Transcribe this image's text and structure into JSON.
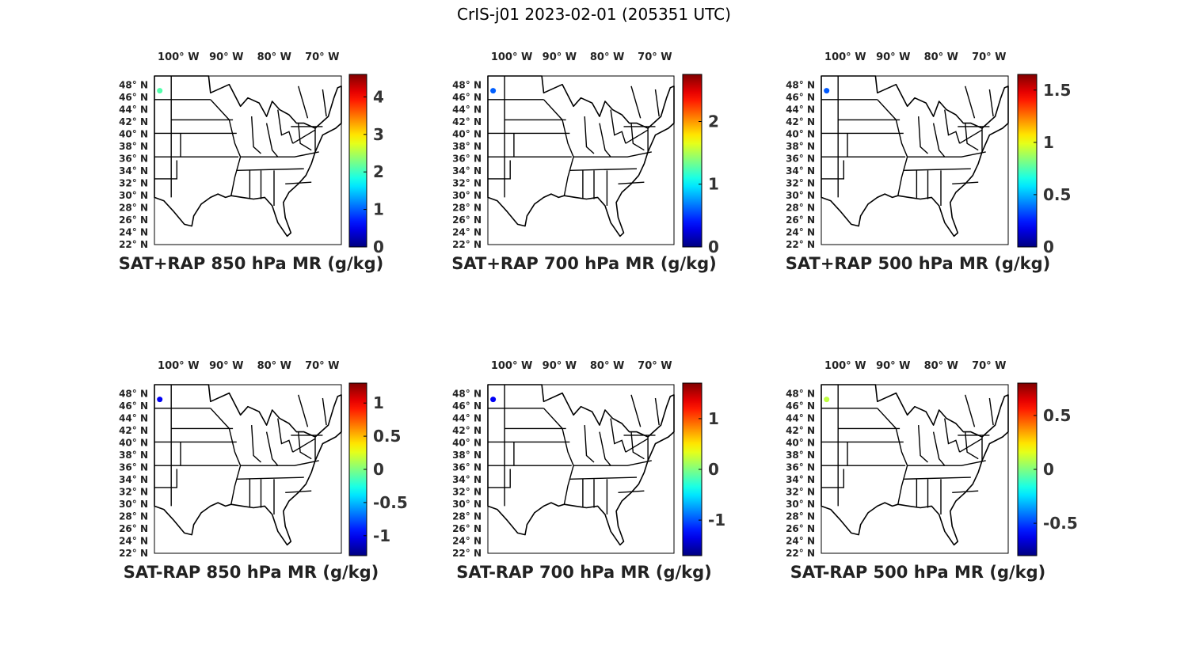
{
  "figure": {
    "title": "CrIS-j01 2023-02-01 (205351 UTC)"
  },
  "map_axes": {
    "lon_ticks": [
      "100° W",
      "90° W",
      "80° W",
      "70° W"
    ],
    "lat_ticks": [
      "48° N",
      "46° N",
      "44° N",
      "42° N",
      "40° N",
      "38° N",
      "36° N",
      "34° N",
      "32° N",
      "30° N",
      "28° N",
      "26° N",
      "24° N",
      "22° N"
    ],
    "lon_values": [
      -100,
      -90,
      -80,
      -70
    ],
    "lat_values": [
      48,
      46,
      44,
      42,
      40,
      38,
      36,
      34,
      32,
      30,
      28,
      26,
      24,
      22
    ],
    "colormap": "jet"
  },
  "chart_data": [
    {
      "type": "heatmap",
      "title": "SAT+RAP 850 hPa MR (g/kg)",
      "clim": [
        0,
        4.6
      ],
      "colorbar_ticks": [
        "0",
        "1",
        "2",
        "3",
        "4"
      ],
      "colorbar_values": [
        0,
        1,
        2,
        3,
        4
      ],
      "points": [
        {
          "lon": -103.9,
          "lat": 47.1,
          "value": 2.1
        }
      ]
    },
    {
      "type": "heatmap",
      "title": "SAT+RAP 700 hPa MR (g/kg)",
      "clim": [
        0,
        2.75
      ],
      "colorbar_ticks": [
        "0",
        "1",
        "2"
      ],
      "colorbar_values": [
        0,
        1,
        2
      ],
      "points": [
        {
          "lon": -103.9,
          "lat": 47.1,
          "value": 0.6
        }
      ]
    },
    {
      "type": "heatmap",
      "title": "SAT+RAP 500 hPa MR (g/kg)",
      "clim": [
        0,
        1.65
      ],
      "colorbar_ticks": [
        "0",
        "0.5",
        "1",
        "1.5"
      ],
      "colorbar_values": [
        0,
        0.5,
        1,
        1.5
      ],
      "points": [
        {
          "lon": -103.9,
          "lat": 47.1,
          "value": 0.35
        }
      ]
    },
    {
      "type": "heatmap",
      "title": "SAT-RAP 850 hPa MR (g/kg)",
      "clim": [
        -1.3,
        1.3
      ],
      "colorbar_ticks": [
        "-1",
        "-0.5",
        "0",
        "0.5",
        "1"
      ],
      "colorbar_values": [
        -1,
        -0.5,
        0,
        0.5,
        1
      ],
      "points": [
        {
          "lon": -103.9,
          "lat": 47.1,
          "value": -1.0
        }
      ]
    },
    {
      "type": "heatmap",
      "title": "SAT-RAP 700 hPa MR (g/kg)",
      "clim": [
        -1.7,
        1.7
      ],
      "colorbar_ticks": [
        "-1",
        "0",
        "1"
      ],
      "colorbar_values": [
        -1,
        0,
        1
      ],
      "points": [
        {
          "lon": -103.9,
          "lat": 47.1,
          "value": -1.3
        }
      ]
    },
    {
      "type": "heatmap",
      "title": "SAT-RAP 500 hPa MR (g/kg)",
      "clim": [
        -0.8,
        0.8
      ],
      "colorbar_ticks": [
        "-0.5",
        "0",
        "0.5"
      ],
      "colorbar_values": [
        -0.5,
        0,
        0.5
      ],
      "points": [
        {
          "lon": -103.9,
          "lat": 47.1,
          "value": 0.1
        }
      ]
    }
  ]
}
